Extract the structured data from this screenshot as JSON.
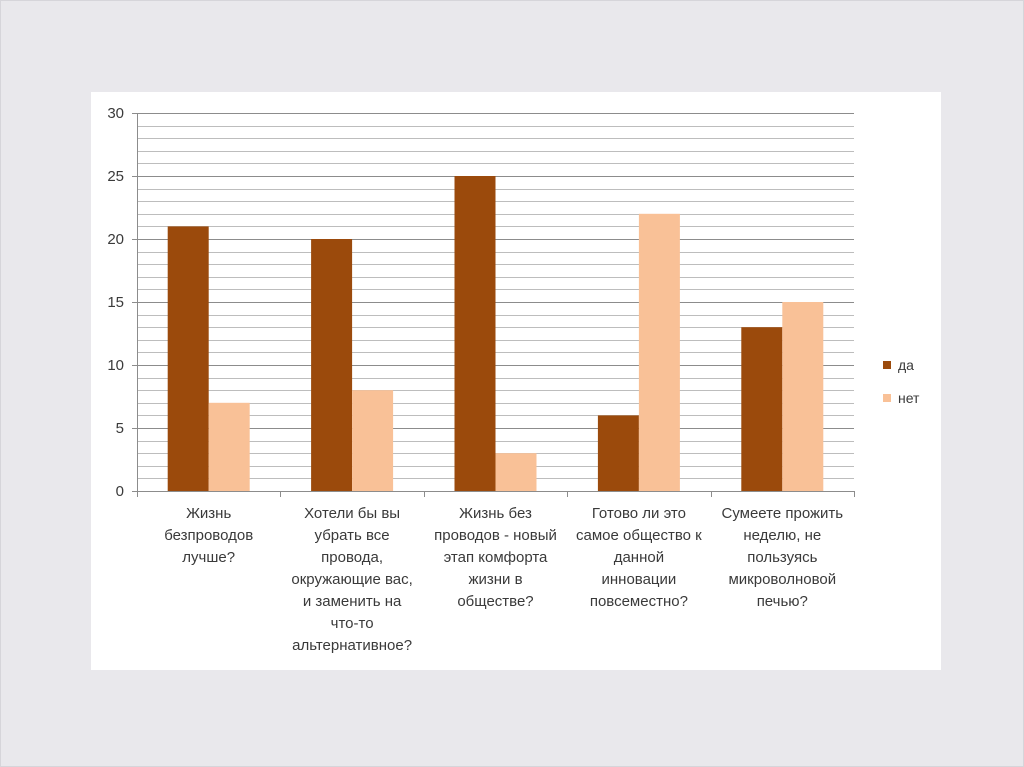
{
  "chart_data": {
    "type": "bar",
    "title": "",
    "xlabel": "",
    "ylabel": "",
    "ylim": [
      0,
      30
    ],
    "yticks": [
      0,
      5,
      10,
      15,
      20,
      25,
      30
    ],
    "minor_grid_step": 1,
    "grid": true,
    "legend_position": "right",
    "categories": [
      "Жизнь\nбезпроводов\nлучше?",
      "Хотели бы вы\nубрать все\nпровода,\nокружающие вас,\nи заменить на\nчто-то\nальтернативное?",
      "Жизнь без\nпроводов - новый\nэтап комфорта\nжизни в\nобществе?",
      "Готово ли это\nсамое общество к\nданной\nинновации\nповсеместно?",
      "Сумеете прожить\nнеделю, не\nпользуясь\nмикроволновой\nпечью?"
    ],
    "series": [
      {
        "name": "да",
        "color": "#9b4a0c",
        "values": [
          21,
          20,
          25,
          6,
          13
        ]
      },
      {
        "name": "нет",
        "color": "#f9c197",
        "values": [
          7,
          8,
          3,
          22,
          15
        ]
      }
    ]
  }
}
